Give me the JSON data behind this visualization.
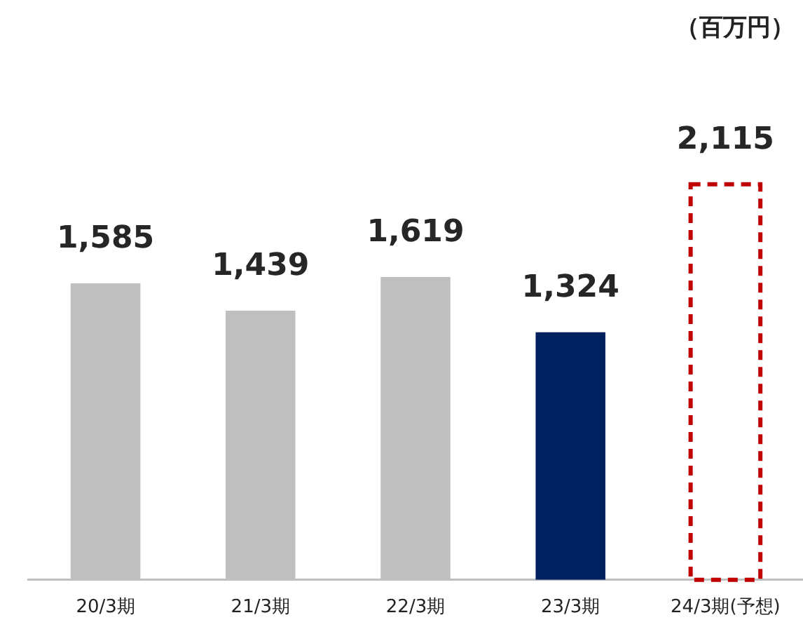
{
  "chart_data": {
    "type": "bar",
    "categories": [
      "20/3期",
      "21/3期",
      "22/3期",
      "23/3期",
      "24/3期(予想)"
    ],
    "series": [
      {
        "colors": [
          "#bfbfbf",
          "#bfbfbf",
          "#bfbfbf",
          "#002060",
          null
        ],
        "values": [
          1585,
          1439,
          1619,
          1324,
          null
        ],
        "value_labels": [
          "1,585",
          "1,439",
          "1,619",
          "1,324",
          null
        ]
      },
      {
        "color": "#c00000",
        "line_style": "dashed",
        "values": [
          null,
          null,
          null,
          null,
          2115
        ],
        "value_labels": [
          null,
          null,
          null,
          null,
          "2,115"
        ]
      }
    ],
    "annotations": [
      "（百万円）"
    ],
    "tick_labels": "x",
    "grid": false,
    "legend": false
  }
}
